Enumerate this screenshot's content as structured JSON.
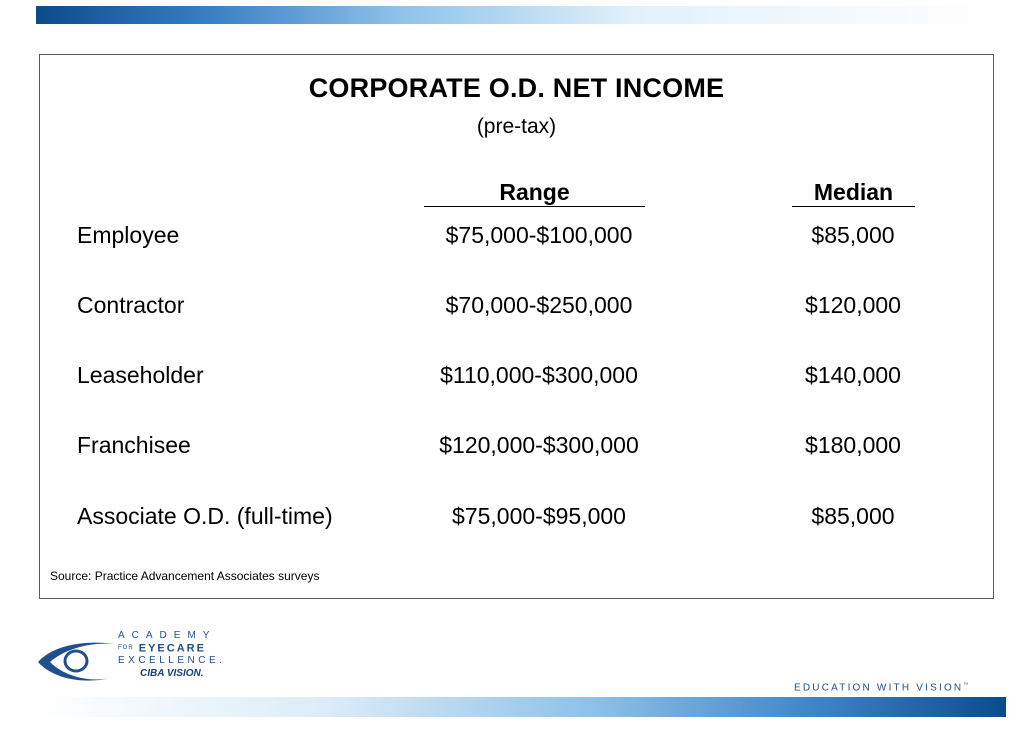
{
  "slide": {
    "title": "CORPORATE O.D. NET INCOME",
    "subtitle": "(pre-tax)",
    "columns": {
      "range": "Range",
      "median": "Median"
    },
    "rows": [
      {
        "label": "Employee",
        "range": "$75,000-$100,000",
        "median": "$85,000"
      },
      {
        "label": "Contractor",
        "range": "$70,000-$250,000",
        "median": "$120,000"
      },
      {
        "label": "Leaseholder",
        "range": "$110,000-$300,000",
        "median": "$140,000"
      },
      {
        "label": "Franchisee",
        "range": "$120,000-$300,000",
        "median": "$180,000"
      },
      {
        "label": "Associate O.D. (full-time)",
        "range": "$75,000-$95,000",
        "median": "$85,000"
      }
    ],
    "source": "Source: Practice Advancement Associates surveys"
  },
  "footer": {
    "logo_line1": "ACADEMY",
    "logo_line2_prefix": "FOR",
    "logo_line2": "EYECARE",
    "logo_line3": "EXCELLENCE.",
    "logo_line4": "CIBA VISION.",
    "tagline": "EDUCATION WITH VISION",
    "tagline_mark": "™"
  },
  "colors": {
    "brand_blue": "#1f4f8f",
    "bar_dark": "#0b4b8c"
  },
  "icons": [
    "eye-logo-icon"
  ]
}
